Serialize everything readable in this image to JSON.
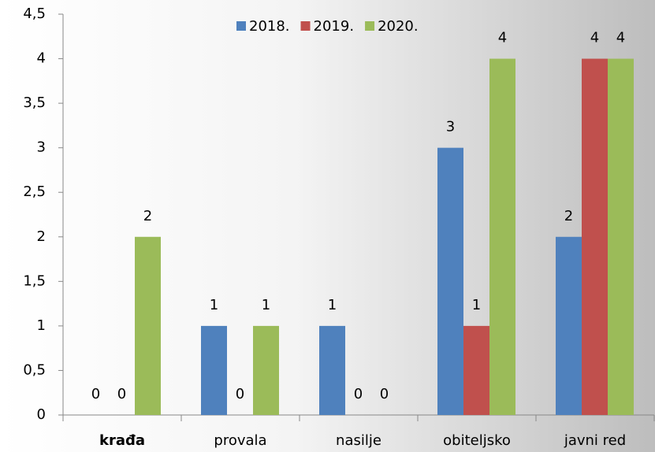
{
  "chart_data": {
    "type": "bar",
    "categories": [
      "krađa",
      "provala",
      "nasilje",
      "obiteljsko",
      "javni red"
    ],
    "series": [
      {
        "name": "2018.",
        "color": "#4f81bd",
        "values": [
          0,
          1,
          1,
          3,
          2
        ]
      },
      {
        "name": "2019.",
        "color": "#c0504d",
        "values": [
          0,
          0,
          0,
          1,
          4
        ]
      },
      {
        "name": "2020.",
        "color": "#9bbb59",
        "values": [
          2,
          1,
          0,
          4,
          4
        ]
      }
    ],
    "ylim": [
      0,
      4.5
    ],
    "yticks": [
      0,
      {
        "value": 0.5,
        "label": "0,5"
      },
      1,
      {
        "value": 1.5,
        "label": "1,5"
      },
      2,
      {
        "value": 2.5,
        "label": "2,5"
      },
      3,
      {
        "value": 3.5,
        "label": "3,5"
      },
      4,
      {
        "value": 4.5,
        "label": "4,5"
      }
    ],
    "legend": "top"
  }
}
